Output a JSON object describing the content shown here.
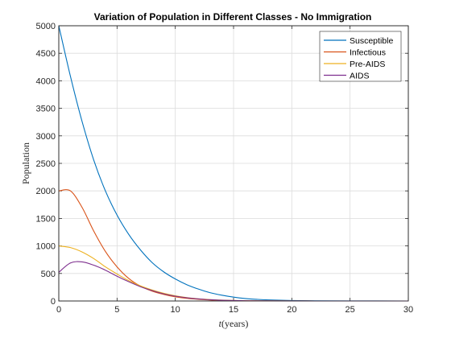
{
  "chart_data": {
    "type": "line",
    "title": "Variation of Population in Different Classes - No Immigration",
    "xlabel_var": "t",
    "xlabel_unit": "(years)",
    "ylabel": "Population",
    "xlim": [
      0,
      30
    ],
    "ylim": [
      0,
      5000
    ],
    "xticks": [
      "0",
      "5",
      "10",
      "15",
      "20",
      "25",
      "30"
    ],
    "yticks": [
      "0",
      "500",
      "1000",
      "1500",
      "2000",
      "2500",
      "3000",
      "3500",
      "4000",
      "4500",
      "5000"
    ],
    "grid": true,
    "legend_position": "top-right",
    "x": [
      0,
      1,
      2,
      3,
      4,
      5,
      6,
      7,
      8,
      9,
      10,
      11,
      12,
      13,
      14,
      15,
      16,
      17,
      18,
      20,
      22,
      25,
      30
    ],
    "series": [
      {
        "name": "Susceptible",
        "color": "#0072bd",
        "values": [
          5000,
          4080,
          3260,
          2560,
          2000,
          1560,
          1210,
          930,
          700,
          530,
          400,
          295,
          215,
          150,
          105,
          70,
          45,
          30,
          20,
          8,
          3,
          1,
          0
        ]
      },
      {
        "name": "Infectious",
        "color": "#d95319",
        "values": [
          2000,
          2000,
          1700,
          1270,
          900,
          620,
          410,
          270,
          180,
          120,
          75,
          48,
          30,
          18,
          11,
          6,
          4,
          2,
          1,
          0,
          0,
          0,
          0
        ]
      },
      {
        "name": "Pre-AIDS",
        "color": "#edb120",
        "values": [
          1000,
          970,
          890,
          770,
          620,
          490,
          370,
          275,
          200,
          140,
          95,
          62,
          40,
          25,
          15,
          9,
          5,
          3,
          2,
          1,
          0,
          0,
          0
        ]
      },
      {
        "name": "AIDS",
        "color": "#7e2f8e",
        "values": [
          520,
          690,
          710,
          650,
          560,
          450,
          350,
          260,
          190,
          130,
          88,
          58,
          37,
          23,
          14,
          8,
          5,
          3,
          2,
          1,
          0,
          0,
          0
        ]
      }
    ]
  }
}
